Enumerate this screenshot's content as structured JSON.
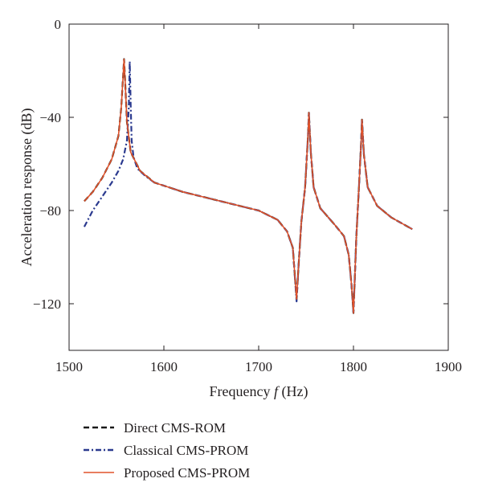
{
  "chart_data": {
    "type": "line",
    "title": "",
    "xlabel_prefix": "Frequency ",
    "xlabel_var": "f",
    "xlabel_suffix": " (Hz)",
    "ylabel": "Acceleration response (dB)",
    "xlim": [
      1500,
      1900
    ],
    "ylim": [
      -140,
      0
    ],
    "xticks": [
      "1500",
      "1600",
      "1700",
      "1800",
      "1900"
    ],
    "yticks": [
      "0",
      "−40",
      "−80",
      "−120"
    ],
    "legend_position": "below-left",
    "grid": false,
    "series": [
      {
        "name": "Direct CMS-ROM",
        "color": "#1a1a1a",
        "style": "dashed",
        "x": [
          1516,
          1525,
          1535,
          1545,
          1552,
          1555,
          1557,
          1558,
          1559,
          1561,
          1565,
          1575,
          1590,
          1620,
          1660,
          1700,
          1720,
          1730,
          1736,
          1740,
          1742,
          1745,
          1749,
          1752,
          1753,
          1755,
          1758,
          1765,
          1780,
          1790,
          1795,
          1798,
          1800,
          1803,
          1806,
          1808,
          1809,
          1811,
          1815,
          1825,
          1840,
          1862
        ],
        "y": [
          -76,
          -72,
          -66,
          -58,
          -48,
          -36,
          -22,
          -15,
          -23,
          -42,
          -55,
          -63,
          -68,
          -72,
          -76,
          -80,
          -84,
          -89,
          -96,
          -118,
          -104,
          -85,
          -70,
          -48,
          -38,
          -55,
          -70,
          -79,
          -86,
          -91,
          -99,
          -112,
          -124,
          -92,
          -68,
          -52,
          -41,
          -56,
          -70,
          -78,
          -83,
          -88
        ]
      },
      {
        "name": "Classical CMS-PROM",
        "color": "#2b3a8f",
        "style": "dashdot",
        "x": [
          1516,
          1525,
          1535,
          1545,
          1552,
          1557,
          1561,
          1563,
          1564,
          1565,
          1566,
          1568,
          1572,
          1580,
          1590,
          1620,
          1660,
          1700,
          1720,
          1730,
          1736,
          1740,
          1742,
          1745,
          1749,
          1752,
          1753,
          1755,
          1758,
          1765,
          1780,
          1790,
          1795,
          1798,
          1800,
          1803,
          1806,
          1808,
          1809,
          1811,
          1815,
          1825,
          1840,
          1862
        ],
        "y": [
          -87,
          -80,
          -74,
          -68,
          -63,
          -58,
          -50,
          -36,
          -16,
          -35,
          -50,
          -57,
          -62,
          -65,
          -68,
          -72,
          -76,
          -80,
          -84,
          -89,
          -96,
          -119,
          -104,
          -85,
          -70,
          -48,
          -38,
          -55,
          -70,
          -79,
          -86,
          -91,
          -99,
          -112,
          -124,
          -92,
          -68,
          -52,
          -41,
          -56,
          -70,
          -78,
          -83,
          -88
        ]
      },
      {
        "name": "Proposed CMS-PROM",
        "color": "#e0522a",
        "style": "solid",
        "x": [
          1516,
          1525,
          1535,
          1545,
          1552,
          1555,
          1557,
          1558,
          1559,
          1561,
          1565,
          1575,
          1590,
          1620,
          1660,
          1700,
          1720,
          1730,
          1736,
          1740,
          1742,
          1745,
          1749,
          1752,
          1753,
          1755,
          1758,
          1765,
          1780,
          1790,
          1795,
          1798,
          1800,
          1803,
          1806,
          1808,
          1809,
          1811,
          1815,
          1825,
          1840,
          1862
        ],
        "y": [
          -76,
          -72,
          -66,
          -58,
          -48,
          -36,
          -22,
          -15,
          -23,
          -42,
          -55,
          -63,
          -68,
          -72,
          -76,
          -80,
          -84,
          -89,
          -96,
          -118,
          -104,
          -85,
          -70,
          -48,
          -38,
          -55,
          -70,
          -79,
          -86,
          -91,
          -99,
          -112,
          -124,
          -92,
          -68,
          -52,
          -41,
          -56,
          -70,
          -78,
          -83,
          -88
        ]
      }
    ]
  }
}
